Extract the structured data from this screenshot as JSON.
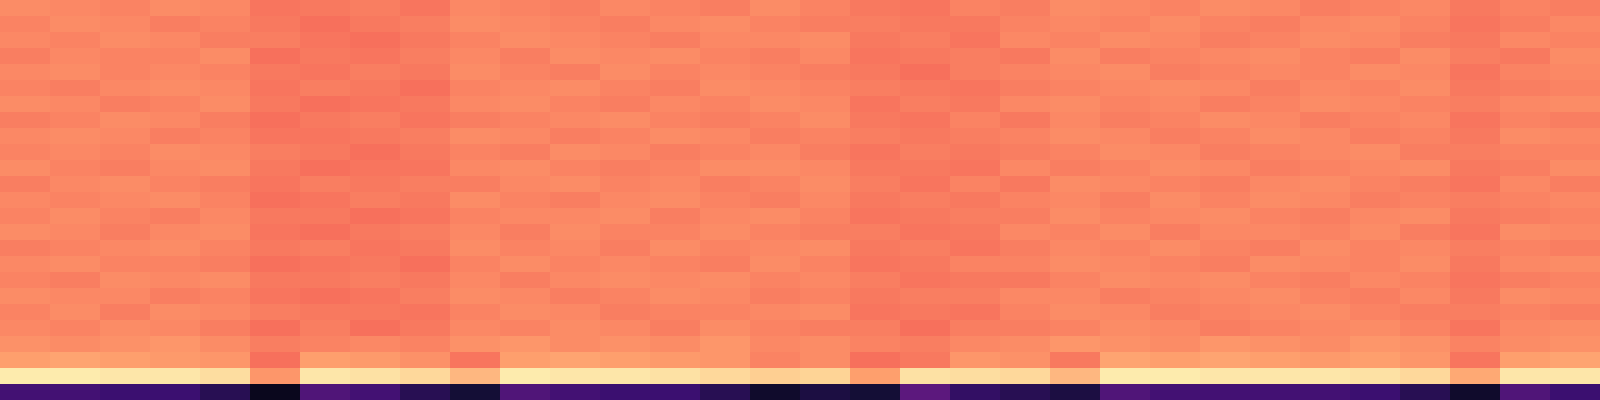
{
  "chart_data": {
    "type": "heatmap",
    "tick_labels": false,
    "color": "magma",
    "zlim": [
      0,
      1
    ],
    "cells": [
      [
        0.76,
        0.75,
        0.74,
        0.76,
        0.75,
        0.71,
        0.72,
        0.73,
        0.71,
        0.75,
        0.74,
        0.73,
        0.75,
        0.74,
        0.73,
        0.76,
        0.74,
        0.72,
        0.71,
        0.74,
        0.73,
        0.76,
        0.75,
        0.74,
        0.76,
        0.75,
        0.73,
        0.74,
        0.75,
        0.72,
        0.74,
        0.73
      ],
      [
        0.74,
        0.76,
        0.75,
        0.73,
        0.74,
        0.72,
        0.7,
        0.72,
        0.73,
        0.76,
        0.75,
        0.74,
        0.73,
        0.75,
        0.76,
        0.74,
        0.73,
        0.73,
        0.72,
        0.72,
        0.74,
        0.75,
        0.74,
        0.76,
        0.74,
        0.73,
        0.75,
        0.76,
        0.74,
        0.71,
        0.73,
        0.75
      ],
      [
        0.75,
        0.74,
        0.76,
        0.75,
        0.73,
        0.73,
        0.71,
        0.7,
        0.72,
        0.74,
        0.76,
        0.75,
        0.74,
        0.73,
        0.75,
        0.75,
        0.76,
        0.72,
        0.73,
        0.71,
        0.75,
        0.74,
        0.76,
        0.75,
        0.73,
        0.74,
        0.76,
        0.75,
        0.73,
        0.72,
        0.75,
        0.74
      ],
      [
        0.73,
        0.75,
        0.74,
        0.74,
        0.76,
        0.7,
        0.72,
        0.71,
        0.73,
        0.75,
        0.73,
        0.76,
        0.75,
        0.76,
        0.74,
        0.73,
        0.75,
        0.71,
        0.72,
        0.73,
        0.72,
        0.76,
        0.73,
        0.74,
        0.75,
        0.76,
        0.74,
        0.73,
        0.76,
        0.73,
        0.72,
        0.76
      ],
      [
        0.75,
        0.76,
        0.74,
        0.75,
        0.74,
        0.72,
        0.71,
        0.73,
        0.72,
        0.76,
        0.74,
        0.73,
        0.76,
        0.74,
        0.75,
        0.74,
        0.73,
        0.72,
        0.7,
        0.73,
        0.74,
        0.75,
        0.76,
        0.73,
        0.74,
        0.75,
        0.74,
        0.76,
        0.75,
        0.71,
        0.74,
        0.75
      ],
      [
        0.74,
        0.73,
        0.75,
        0.76,
        0.75,
        0.71,
        0.73,
        0.72,
        0.7,
        0.74,
        0.75,
        0.76,
        0.74,
        0.73,
        0.76,
        0.75,
        0.74,
        0.73,
        0.72,
        0.71,
        0.73,
        0.74,
        0.75,
        0.76,
        0.75,
        0.73,
        0.75,
        0.74,
        0.76,
        0.72,
        0.73,
        0.74
      ],
      [
        0.76,
        0.75,
        0.73,
        0.74,
        0.76,
        0.72,
        0.7,
        0.71,
        0.72,
        0.75,
        0.76,
        0.74,
        0.73,
        0.75,
        0.74,
        0.76,
        0.75,
        0.71,
        0.73,
        0.72,
        0.75,
        0.76,
        0.74,
        0.75,
        0.73,
        0.74,
        0.76,
        0.75,
        0.74,
        0.73,
        0.75,
        0.76
      ],
      [
        0.73,
        0.74,
        0.76,
        0.75,
        0.73,
        0.7,
        0.72,
        0.73,
        0.71,
        0.73,
        0.74,
        0.75,
        0.76,
        0.74,
        0.73,
        0.74,
        0.76,
        0.72,
        0.71,
        0.74,
        0.72,
        0.75,
        0.73,
        0.74,
        0.76,
        0.75,
        0.73,
        0.74,
        0.75,
        0.71,
        0.74,
        0.73
      ],
      [
        0.75,
        0.76,
        0.75,
        0.73,
        0.74,
        0.71,
        0.71,
        0.72,
        0.73,
        0.76,
        0.75,
        0.73,
        0.74,
        0.76,
        0.75,
        0.73,
        0.74,
        0.73,
        0.72,
        0.73,
        0.74,
        0.76,
        0.75,
        0.73,
        0.74,
        0.76,
        0.75,
        0.73,
        0.74,
        0.72,
        0.76,
        0.75
      ],
      [
        0.74,
        0.75,
        0.74,
        0.76,
        0.75,
        0.73,
        0.72,
        0.7,
        0.72,
        0.74,
        0.73,
        0.76,
        0.75,
        0.73,
        0.74,
        0.75,
        0.73,
        0.71,
        0.73,
        0.72,
        0.73,
        0.74,
        0.76,
        0.75,
        0.73,
        0.74,
        0.75,
        0.76,
        0.73,
        0.73,
        0.74,
        0.74
      ],
      [
        0.76,
        0.74,
        0.73,
        0.75,
        0.76,
        0.72,
        0.7,
        0.71,
        0.71,
        0.75,
        0.76,
        0.74,
        0.73,
        0.74,
        0.76,
        0.76,
        0.75,
        0.72,
        0.72,
        0.71,
        0.75,
        0.73,
        0.74,
        0.76,
        0.75,
        0.73,
        0.74,
        0.75,
        0.76,
        0.72,
        0.73,
        0.76
      ],
      [
        0.73,
        0.75,
        0.76,
        0.74,
        0.73,
        0.71,
        0.73,
        0.72,
        0.73,
        0.73,
        0.75,
        0.76,
        0.74,
        0.75,
        0.73,
        0.74,
        0.76,
        0.73,
        0.71,
        0.74,
        0.72,
        0.76,
        0.75,
        0.74,
        0.73,
        0.75,
        0.76,
        0.74,
        0.73,
        0.71,
        0.75,
        0.73
      ],
      [
        0.75,
        0.74,
        0.75,
        0.76,
        0.74,
        0.7,
        0.71,
        0.73,
        0.72,
        0.76,
        0.74,
        0.73,
        0.75,
        0.76,
        0.74,
        0.73,
        0.75,
        0.72,
        0.73,
        0.72,
        0.74,
        0.75,
        0.73,
        0.76,
        0.74,
        0.76,
        0.75,
        0.73,
        0.74,
        0.73,
        0.74,
        0.75
      ],
      [
        0.74,
        0.76,
        0.74,
        0.73,
        0.75,
        0.72,
        0.72,
        0.7,
        0.71,
        0.74,
        0.75,
        0.75,
        0.76,
        0.73,
        0.75,
        0.76,
        0.74,
        0.71,
        0.72,
        0.73,
        0.73,
        0.76,
        0.74,
        0.75,
        0.76,
        0.74,
        0.73,
        0.75,
        0.76,
        0.72,
        0.73,
        0.74
      ],
      [
        0.76,
        0.75,
        0.73,
        0.75,
        0.76,
        0.71,
        0.7,
        0.72,
        0.73,
        0.75,
        0.73,
        0.76,
        0.74,
        0.74,
        0.76,
        0.74,
        0.73,
        0.73,
        0.71,
        0.72,
        0.75,
        0.74,
        0.76,
        0.73,
        0.75,
        0.75,
        0.74,
        0.76,
        0.73,
        0.71,
        0.76,
        0.75
      ],
      [
        0.73,
        0.74,
        0.75,
        0.76,
        0.74,
        0.72,
        0.73,
        0.71,
        0.72,
        0.76,
        0.74,
        0.75,
        0.73,
        0.76,
        0.74,
        0.75,
        0.76,
        0.72,
        0.73,
        0.71,
        0.73,
        0.75,
        0.74,
        0.76,
        0.74,
        0.73,
        0.76,
        0.74,
        0.75,
        0.73,
        0.74,
        0.73
      ],
      [
        0.75,
        0.76,
        0.74,
        0.74,
        0.73,
        0.7,
        0.71,
        0.72,
        0.7,
        0.74,
        0.76,
        0.74,
        0.75,
        0.74,
        0.73,
        0.76,
        0.74,
        0.71,
        0.72,
        0.74,
        0.74,
        0.76,
        0.75,
        0.74,
        0.73,
        0.76,
        0.75,
        0.74,
        0.76,
        0.72,
        0.75,
        0.76
      ],
      [
        0.74,
        0.73,
        0.76,
        0.75,
        0.76,
        0.72,
        0.72,
        0.73,
        0.72,
        0.75,
        0.73,
        0.75,
        0.76,
        0.75,
        0.76,
        0.74,
        0.75,
        0.73,
        0.71,
        0.72,
        0.72,
        0.74,
        0.76,
        0.75,
        0.76,
        0.74,
        0.73,
        0.75,
        0.74,
        0.71,
        0.73,
        0.74
      ],
      [
        0.76,
        0.75,
        0.75,
        0.73,
        0.74,
        0.71,
        0.7,
        0.71,
        0.73,
        0.76,
        0.75,
        0.73,
        0.74,
        0.76,
        0.75,
        0.73,
        0.74,
        0.72,
        0.73,
        0.73,
        0.75,
        0.75,
        0.73,
        0.74,
        0.75,
        0.76,
        0.74,
        0.73,
        0.75,
        0.72,
        0.76,
        0.75
      ],
      [
        0.74,
        0.76,
        0.73,
        0.76,
        0.75,
        0.73,
        0.72,
        0.72,
        0.71,
        0.74,
        0.76,
        0.75,
        0.73,
        0.74,
        0.74,
        0.75,
        0.76,
        0.71,
        0.72,
        0.71,
        0.74,
        0.76,
        0.75,
        0.73,
        0.74,
        0.75,
        0.76,
        0.74,
        0.73,
        0.73,
        0.74,
        0.73
      ],
      [
        0.75,
        0.74,
        0.76,
        0.75,
        0.73,
        0.7,
        0.73,
        0.7,
        0.72,
        0.75,
        0.74,
        0.76,
        0.75,
        0.73,
        0.76,
        0.74,
        0.73,
        0.73,
        0.7,
        0.73,
        0.73,
        0.74,
        0.76,
        0.75,
        0.73,
        0.74,
        0.75,
        0.76,
        0.74,
        0.71,
        0.75,
        0.76
      ],
      [
        0.77,
        0.76,
        0.77,
        0.78,
        0.76,
        0.73,
        0.74,
        0.75,
        0.74,
        0.77,
        0.78,
        0.76,
        0.77,
        0.76,
        0.78,
        0.75,
        0.76,
        0.74,
        0.73,
        0.75,
        0.76,
        0.78,
        0.77,
        0.76,
        0.78,
        0.77,
        0.76,
        0.78,
        0.77,
        0.74,
        0.76,
        0.77
      ],
      [
        0.8,
        0.81,
        0.8,
        0.79,
        0.78,
        0.7,
        0.8,
        0.79,
        0.77,
        0.71,
        0.8,
        0.81,
        0.8,
        0.79,
        0.78,
        0.74,
        0.76,
        0.7,
        0.72,
        0.78,
        0.77,
        0.72,
        0.81,
        0.8,
        0.81,
        0.8,
        0.79,
        0.8,
        0.78,
        0.71,
        0.8,
        0.81
      ],
      [
        0.96,
        0.96,
        0.95,
        0.95,
        0.93,
        0.78,
        0.95,
        0.94,
        0.92,
        0.85,
        0.96,
        0.95,
        0.95,
        0.94,
        0.92,
        0.9,
        0.91,
        0.8,
        0.94,
        0.93,
        0.92,
        0.85,
        0.96,
        0.96,
        0.95,
        0.95,
        0.95,
        0.94,
        0.92,
        0.82,
        0.95,
        0.95
      ],
      [
        0.22,
        0.22,
        0.2,
        0.2,
        0.15,
        0.05,
        0.25,
        0.22,
        0.15,
        0.1,
        0.25,
        0.22,
        0.2,
        0.2,
        0.15,
        0.08,
        0.12,
        0.1,
        0.28,
        0.18,
        0.15,
        0.12,
        0.25,
        0.22,
        0.22,
        0.22,
        0.22,
        0.2,
        0.15,
        0.08,
        0.25,
        0.2
      ]
    ]
  }
}
